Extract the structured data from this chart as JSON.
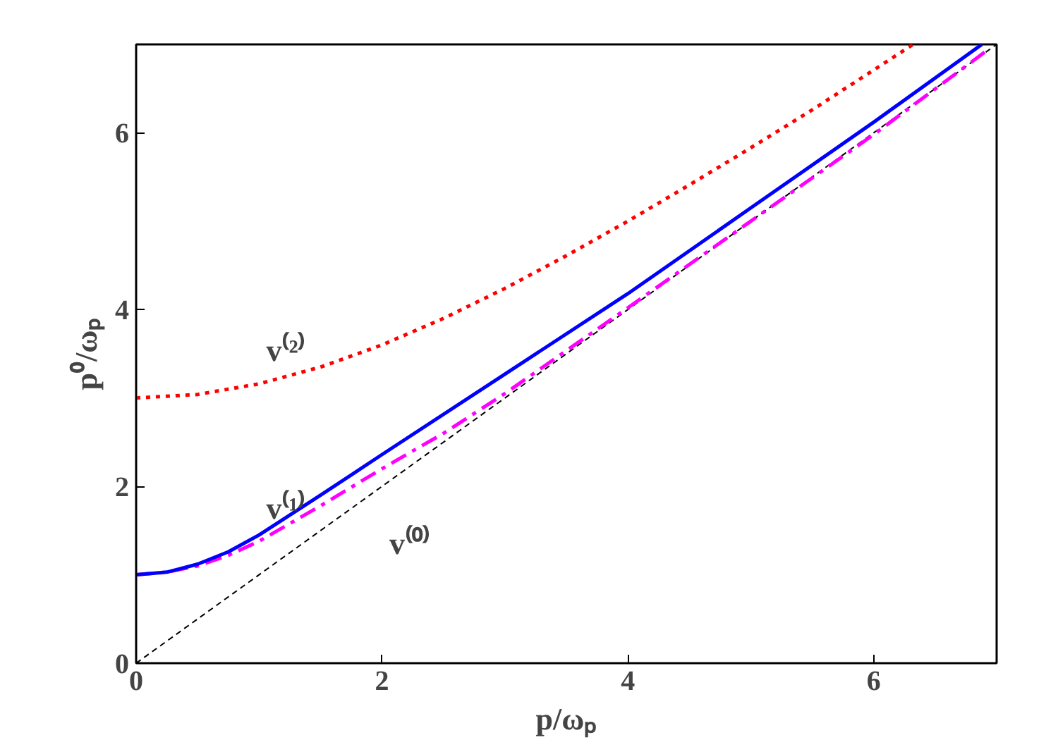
{
  "chart_data": {
    "type": "line",
    "xlabel": "p/ωₚ",
    "ylabel": "p⁰/ωₚ",
    "xlim": [
      0,
      7
    ],
    "ylim": [
      0,
      7
    ],
    "xticks": [
      0,
      2,
      4,
      6
    ],
    "yticks": [
      0,
      2,
      4,
      6
    ],
    "grid": false,
    "marker": "none",
    "series": [
      {
        "color": "#000000",
        "line_style": "dashed",
        "x": [
          0,
          7
        ],
        "values": [
          0,
          7
        ]
      },
      {
        "color": "#ff00ff",
        "line_style": "dashdot",
        "x": [
          0,
          0.25,
          0.5,
          0.75,
          1,
          1.5,
          2,
          2.5,
          3,
          4,
          5,
          6,
          6.93
        ],
        "values": [
          1,
          1.03,
          1.1,
          1.22,
          1.38,
          1.78,
          2.2,
          2.6,
          3.05,
          4.02,
          5.0,
          5.98,
          6.94
        ]
      },
      {
        "color": "#0000ff",
        "line_style": "solid",
        "x": [
          0,
          0.25,
          0.5,
          0.75,
          1,
          1.5,
          2,
          3,
          4,
          5,
          6,
          6.88
        ],
        "values": [
          1,
          1.03,
          1.12,
          1.26,
          1.45,
          1.9,
          2.36,
          3.27,
          4.18,
          5.15,
          6.12,
          7
        ]
      },
      {
        "color": "#ff0000",
        "line_style": "dotted",
        "x": [
          0,
          0.5,
          1,
          1.5,
          2,
          2.5,
          3,
          3.5,
          4,
          4.5,
          5,
          5.5,
          6,
          6.32
        ],
        "values": [
          3,
          3.04,
          3.16,
          3.35,
          3.6,
          3.9,
          4.24,
          4.61,
          5,
          5.41,
          5.83,
          6.26,
          6.71,
          7
        ]
      }
    ],
    "annotations": [
      "v⁽²⁾",
      "v⁽¹⁾",
      "v⁽⁰⁾"
    ]
  }
}
